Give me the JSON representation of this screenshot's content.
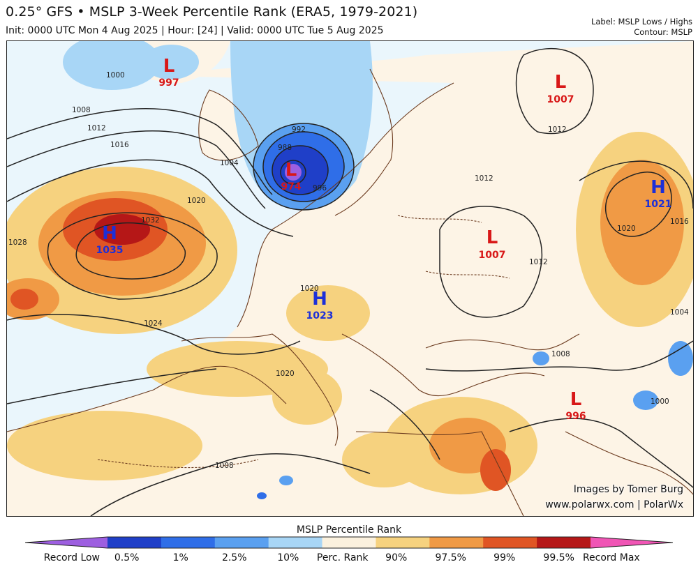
{
  "header": {
    "title": "0.25° GFS • MSLP 3-Week Percentile Rank (ERA5, 1979-2021)",
    "subtitle": "Init: 0000 UTC Mon 4 Aug 2025 | Hour: [24] | Valid: 0000 UTC Tue 5 Aug 2025",
    "label_info": "Label: MSLP Lows / Highs",
    "contour_info": "Contour: MSLP"
  },
  "map": {
    "pressure_centers": [
      {
        "type": "L",
        "value": "997"
      },
      {
        "type": "L",
        "value": "1007"
      },
      {
        "type": "L",
        "value": "974"
      },
      {
        "type": "H",
        "value": "1021"
      },
      {
        "type": "H",
        "value": "1035"
      },
      {
        "type": "L",
        "value": "1007"
      },
      {
        "type": "H",
        "value": "1023"
      },
      {
        "type": "L",
        "value": "996"
      }
    ],
    "contour_labels": [
      "1000",
      "1008",
      "1012",
      "1016",
      "1004",
      "1020",
      "1032",
      "1028",
      "1024",
      "992",
      "988",
      "996",
      "1012",
      "1012",
      "1020",
      "1016",
      "1012",
      "1004",
      "1020",
      "1020",
      "1008",
      "1000",
      "1008"
    ]
  },
  "credits": {
    "line1": "Images by Tomer Burg",
    "line2": "www.polarwx.com | PolarWx"
  },
  "colorbar": {
    "title": "MSLP Percentile Rank",
    "colors": [
      "#9d5fe0",
      "#1f3fc8",
      "#2f6ee8",
      "#5aa0f0",
      "#a8d6f6",
      "#fbf1de",
      "#f6d27f",
      "#f09a45",
      "#e05524",
      "#b51717",
      "#f055b5"
    ],
    "ticks": [
      "Record Low",
      "0.5%",
      "1%",
      "2.5%",
      "10%",
      "Perc. Rank",
      "90%",
      "97.5%",
      "99%",
      "99.5%",
      "Record Max"
    ]
  },
  "colors": {
    "low_label": "#d81818",
    "high_label": "#1c2fd8",
    "coast": "#6b3a1e",
    "contour": "#222222"
  }
}
